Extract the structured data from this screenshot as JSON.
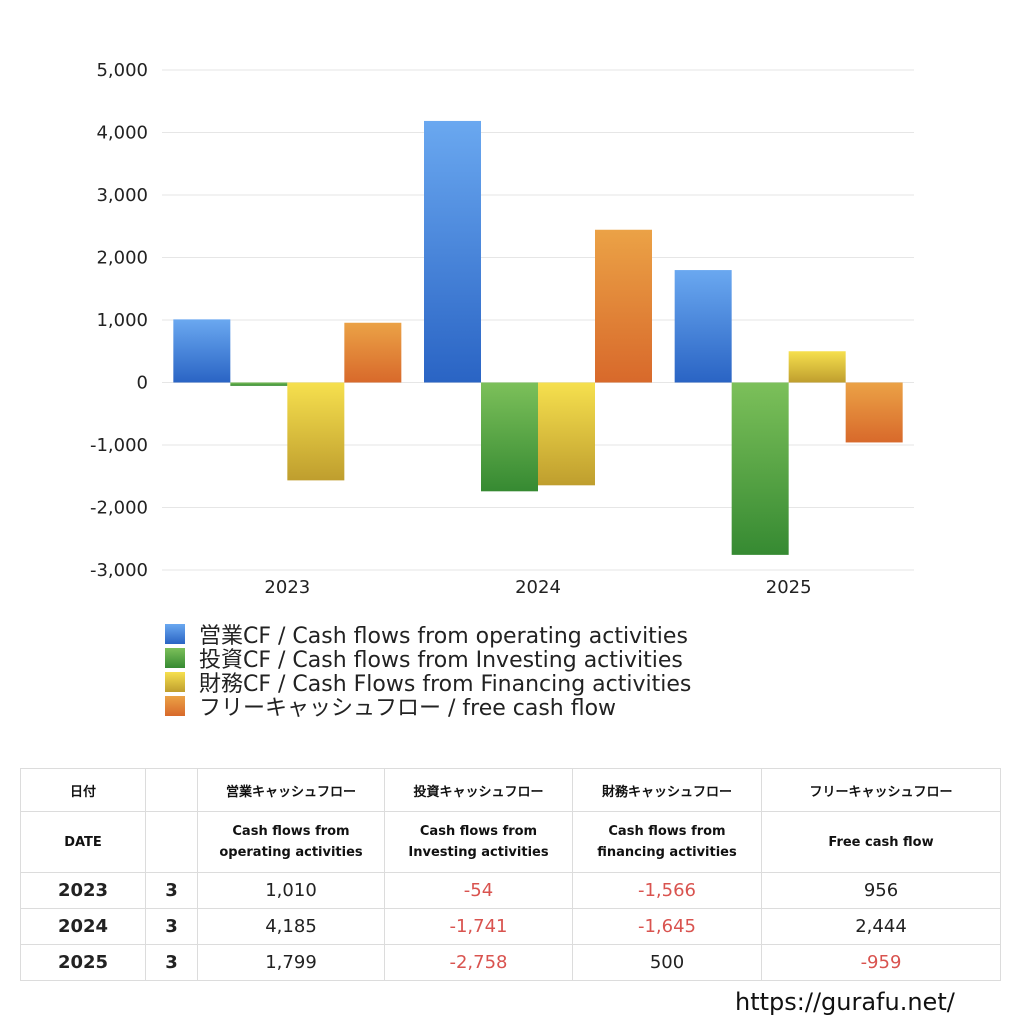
{
  "chart_data": {
    "type": "bar",
    "categories": [
      "2023",
      "2024",
      "2025"
    ],
    "series": [
      {
        "name": "営業CF / Cash flows from operating activities",
        "values": [
          1010,
          4185,
          1799
        ],
        "color_top": "#6aa8f0",
        "color_bottom": "#2a64c4"
      },
      {
        "name": "投資CF / Cash flows from Investing activities",
        "values": [
          -54,
          -1741,
          -2758
        ],
        "color_top": "#7cc05a",
        "color_bottom": "#368a32"
      },
      {
        "name": "財務CF / Cash Flows from Financing activities",
        "values": [
          -1566,
          -1645,
          500
        ],
        "color_top": "#f6e04e",
        "color_bottom": "#bf9e2e"
      },
      {
        "name": "フリーキャッシュフロー / free cash flow",
        "values": [
          956,
          2444,
          -959
        ],
        "color_top": "#eba246",
        "color_bottom": "#d8692b"
      }
    ],
    "ylim": [
      -3000,
      5000
    ],
    "yticks": [
      5000,
      4000,
      3000,
      2000,
      1000,
      0,
      -1000,
      -2000,
      -3000
    ],
    "ytick_labels": [
      "5,000",
      "4,000",
      "3,000",
      "2,000",
      "1,000",
      "0",
      "-1,000",
      "-2,000",
      "-3,000"
    ],
    "grid": true,
    "legend_position": "bottom"
  },
  "table": {
    "headers_jp": [
      "日付",
      "営業キャッシュフロー",
      "投資キャッシュフロー",
      "財務キャッシュフロー",
      "フリーキャッシュフロー"
    ],
    "headers_en": {
      "date": "DATE",
      "operating_1": "Cash flows from",
      "operating_2": "operating activities",
      "investing_1": "Cash flows from",
      "investing_2": "Investing activities",
      "financing_1": "Cash flows from",
      "financing_2": "financing activities",
      "free": "Free cash flow"
    },
    "rows": [
      {
        "year": "2023",
        "month": "3",
        "operating": "1,010",
        "investing": "-54",
        "financing": "-1,566",
        "free": "956"
      },
      {
        "year": "2024",
        "month": "3",
        "operating": "4,185",
        "investing": "-1,741",
        "financing": "-1,645",
        "free": "2,444"
      },
      {
        "year": "2025",
        "month": "3",
        "operating": "1,799",
        "investing": "-2,758",
        "financing": "500",
        "free": "-959"
      }
    ]
  },
  "footer": {
    "url": "https://gurafu.net/"
  },
  "colors": {
    "negative": "#d9534f",
    "grid": "#e6e6e6"
  }
}
